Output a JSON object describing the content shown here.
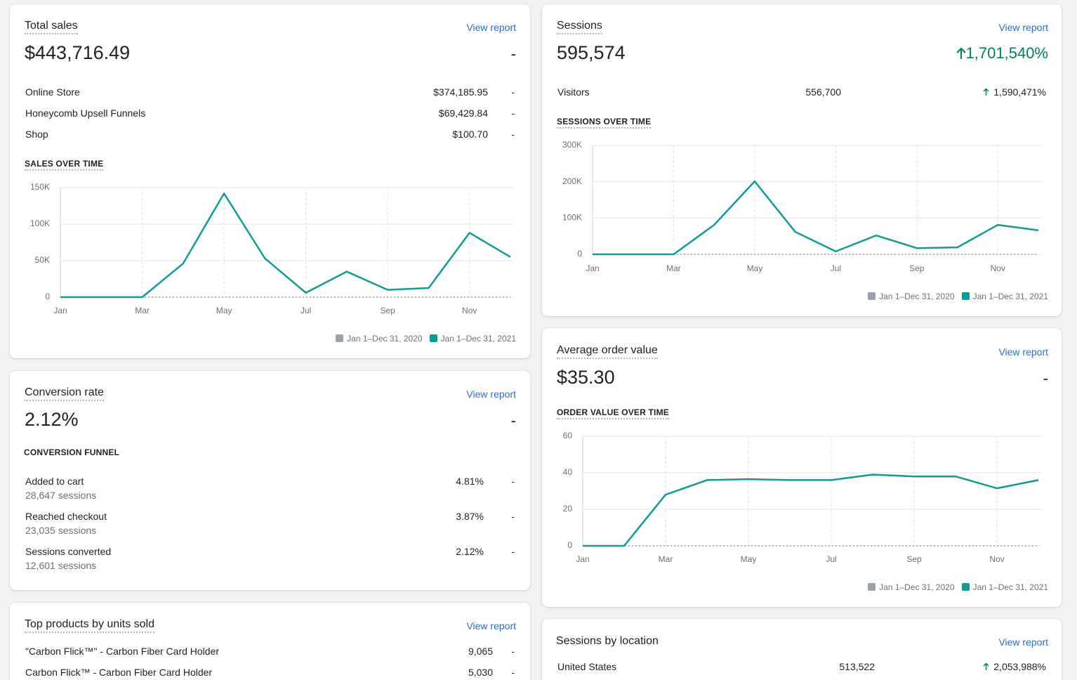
{
  "total_sales": {
    "title": "Total sales",
    "link": "View report",
    "value": "$443,716.49",
    "change": "-",
    "rows": [
      {
        "label": "Online Store",
        "value": "$374,185.95",
        "change": "-"
      },
      {
        "label": "Honeycomb Upsell Funnels",
        "value": "$69,429.84",
        "change": "-"
      },
      {
        "label": "Shop",
        "value": "$100.70",
        "change": "-"
      }
    ],
    "chart": {
      "type": "line",
      "title": "SALES OVER TIME",
      "categories": [
        "Jan",
        null,
        "Mar",
        null,
        "May",
        null,
        "Jul",
        null,
        "Sep",
        null,
        "Nov",
        null
      ],
      "series": [
        {
          "name": "Jan 1–Dec 31, 2020",
          "color": "#9aa2ab",
          "style": "dotted",
          "values": [
            0,
            0,
            0,
            0,
            0,
            0,
            0,
            0,
            0,
            0,
            0,
            0
          ]
        },
        {
          "name": "Jan 1–Dec 31, 2021",
          "color": "#149a94",
          "style": "solid",
          "values": [
            0,
            0,
            0,
            46000,
            142000,
            53000,
            6000,
            35000,
            10000,
            12500,
            88000,
            55000
          ]
        }
      ],
      "ylim": [
        0,
        150000
      ],
      "yticks": [
        0,
        {
          "value": 50000,
          "label": "50K"
        },
        {
          "value": 100000,
          "label": "100K"
        },
        {
          "value": 150000,
          "label": "150K"
        }
      ],
      "grid": true
    }
  },
  "conversion_rate": {
    "title": "Conversion rate",
    "link": "View report",
    "value": "2.12%",
    "change": "-",
    "section": "CONVERSION FUNNEL",
    "rows": [
      {
        "label": "Added to cart",
        "sub": "28,647 sessions",
        "value": "4.81%",
        "change": "-"
      },
      {
        "label": "Reached checkout",
        "sub": "23,035 sessions",
        "value": "3.87%",
        "change": "-"
      },
      {
        "label": "Sessions converted",
        "sub": "12,601 sessions",
        "value": "2.12%",
        "change": "-"
      }
    ]
  },
  "top_products": {
    "title": "Top products by units sold",
    "link": "View report",
    "rows": [
      {
        "label": "\"Carbon Flick™\" - Carbon Fiber Card Holder",
        "value": "9,065",
        "change": "-"
      },
      {
        "label": "Carbon Flick™ - Carbon Fiber Card Holder",
        "value": "5,030",
        "change": "-"
      }
    ]
  },
  "sessions": {
    "title": "Sessions",
    "link": "View report",
    "value": "595,574",
    "change": "1,701,540%",
    "rows": [
      {
        "label": "Visitors",
        "value": "556,700",
        "change": "1,590,471%"
      }
    ],
    "chart": {
      "type": "line",
      "title": "SESSIONS OVER TIME",
      "categories": [
        "Jan",
        null,
        "Mar",
        null,
        "May",
        null,
        "Jul",
        null,
        "Sep",
        null,
        "Nov",
        null
      ],
      "series": [
        {
          "name": "Jan 1–Dec 31, 2020",
          "color": "#9aa2ab",
          "style": "dotted",
          "values": [
            0,
            0,
            0,
            0,
            0,
            0,
            0,
            0,
            0,
            0,
            0,
            0
          ]
        },
        {
          "name": "Jan 1–Dec 31, 2021",
          "color": "#149a94",
          "style": "solid",
          "values": [
            0,
            0,
            0,
            81000,
            201000,
            62000,
            8000,
            52000,
            17000,
            19000,
            81000,
            66000
          ]
        }
      ],
      "ylim": [
        0,
        300000
      ],
      "yticks": [
        0,
        {
          "value": 100000,
          "label": "100K"
        },
        {
          "value": 200000,
          "label": "200K"
        },
        {
          "value": 300000,
          "label": "300K"
        }
      ],
      "grid": true
    }
  },
  "average_order_value": {
    "title": "Average order value",
    "link": "View report",
    "value": "$35.30",
    "change": "-",
    "chart": {
      "type": "line",
      "title": "ORDER VALUE OVER TIME",
      "categories": [
        "Jan",
        null,
        "Mar",
        null,
        "May",
        null,
        "Jul",
        null,
        "Sep",
        null,
        "Nov",
        null
      ],
      "series": [
        {
          "name": "Jan 1–Dec 31, 2020",
          "color": "#9aa2ab",
          "style": "dotted",
          "values": [
            0,
            0,
            0,
            0,
            0,
            0,
            0,
            0,
            0,
            0,
            0,
            0
          ]
        },
        {
          "name": "Jan 1–Dec 31, 2021",
          "color": "#149a94",
          "style": "solid",
          "values": [
            0,
            0,
            28,
            36,
            36.5,
            36,
            36,
            39,
            38,
            38,
            31.5,
            36
          ]
        }
      ],
      "ylim": [
        0,
        60
      ],
      "yticks": [
        0,
        20,
        40,
        60
      ],
      "grid": true
    }
  },
  "sessions_by_location": {
    "title": "Sessions by location",
    "link": "View report",
    "rows": [
      {
        "label": "United States",
        "value": "513,522",
        "change": "2,053,988%"
      }
    ]
  }
}
